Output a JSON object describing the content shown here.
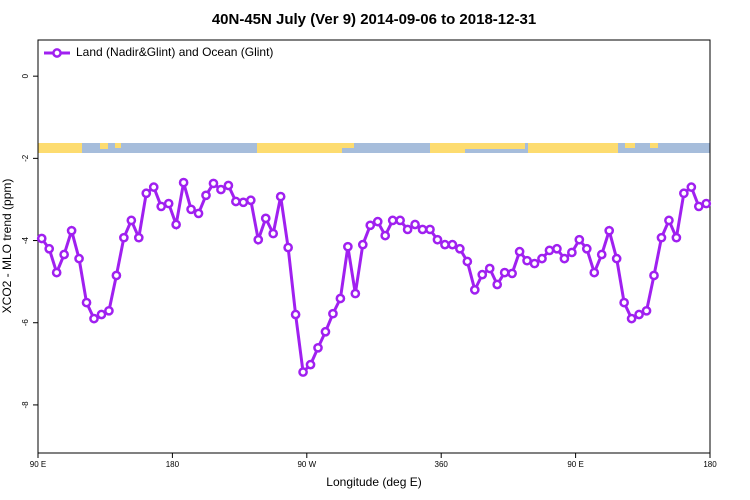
{
  "chart_data": {
    "type": "line",
    "title": "40N-45N July (Ver 9)   2014-09-06 to 2018-12-31",
    "x_label": "Longitude (deg E)",
    "y_label": "XCO2 - MLO trend (ppm)",
    "x": [
      92.5,
      97.5,
      102.5,
      107.5,
      112.5,
      117.5,
      122.5,
      127.5,
      132.5,
      137.5,
      142.5,
      147.5,
      152.5,
      157.5,
      162.5,
      167.5,
      172.5,
      177.5,
      182.5,
      187.5,
      192.5,
      197.5,
      202.5,
      207.5,
      212.5,
      217.5,
      222.5,
      227.5,
      232.5,
      237.5,
      242.5,
      247.5,
      252.5,
      257.5,
      262.5,
      267.5,
      272.5,
      277.5,
      282.5,
      287.5,
      292.5,
      297.5,
      302.5,
      307.5,
      312.5,
      317.5,
      322.5,
      327.5,
      332.5,
      337.5,
      342.5,
      347.5,
      352.5,
      357.5,
      362.5,
      367.5,
      372.5,
      377.5,
      382.5,
      387.5,
      392.5,
      397.5,
      402.5,
      407.5,
      412.5,
      417.5,
      422.5,
      427.5,
      432.5,
      437.5,
      442.5,
      447.5,
      452.5,
      457.5,
      462.5,
      467.5,
      472.5,
      477.5,
      482.5,
      487.5,
      492.5,
      497.5,
      502.5,
      507.5,
      512.5,
      517.5,
      522.5,
      527.5,
      532.5,
      537.5
    ],
    "series": [
      {
        "name": "Land (Nadir&Glint) and Ocean (Glint)",
        "color": "#a020f0",
        "values": [
          -3.95,
          -4.2,
          -4.78,
          -4.34,
          -3.76,
          -4.44,
          -5.51,
          -5.9,
          -5.8,
          -5.71,
          -4.85,
          -3.93,
          -3.51,
          -3.93,
          -2.85,
          -2.7,
          -3.17,
          -3.1,
          -3.61,
          -2.59,
          -3.24,
          -3.34,
          -2.9,
          -2.61,
          -2.76,
          -2.66,
          -3.05,
          -3.07,
          -3.02,
          -3.98,
          -3.46,
          -3.83,
          -2.93,
          -4.17,
          -5.8,
          -7.2,
          -7.02,
          -6.61,
          -6.22,
          -5.78,
          -5.41,
          -4.15,
          -5.29,
          -4.1,
          -3.63,
          -3.54,
          -3.88,
          -3.51,
          -3.51,
          -3.73,
          -3.61,
          -3.73,
          -3.73,
          -3.98,
          -4.1,
          -4.1,
          -4.2,
          -4.51,
          -5.2,
          -4.83,
          -4.68,
          -5.07,
          -4.78,
          -4.8,
          -4.27,
          -4.49,
          -4.56,
          -4.44,
          -4.24,
          -4.2,
          -4.44,
          -4.29,
          -3.98,
          -4.2,
          -4.78,
          -4.34,
          -3.76,
          -4.44,
          -5.51,
          -5.9,
          -5.8,
          -5.71,
          -4.85,
          -3.93,
          -3.51,
          -3.93,
          -2.85,
          -2.7,
          -3.17,
          -3.1
        ]
      }
    ],
    "xlim": [
      90,
      540
    ],
    "xticks": [
      {
        "value": 90,
        "label": "90 E"
      },
      180,
      {
        "value": 270,
        "label": "90 W"
      },
      360,
      {
        "value": 450,
        "label": "90 E"
      },
      {
        "value": 540,
        "label": "180"
      }
    ],
    "ylim": [
      -9.17,
      0.88
    ],
    "yticks": [
      0,
      -2,
      -4,
      -6,
      -8
    ],
    "legend": "top-left"
  }
}
